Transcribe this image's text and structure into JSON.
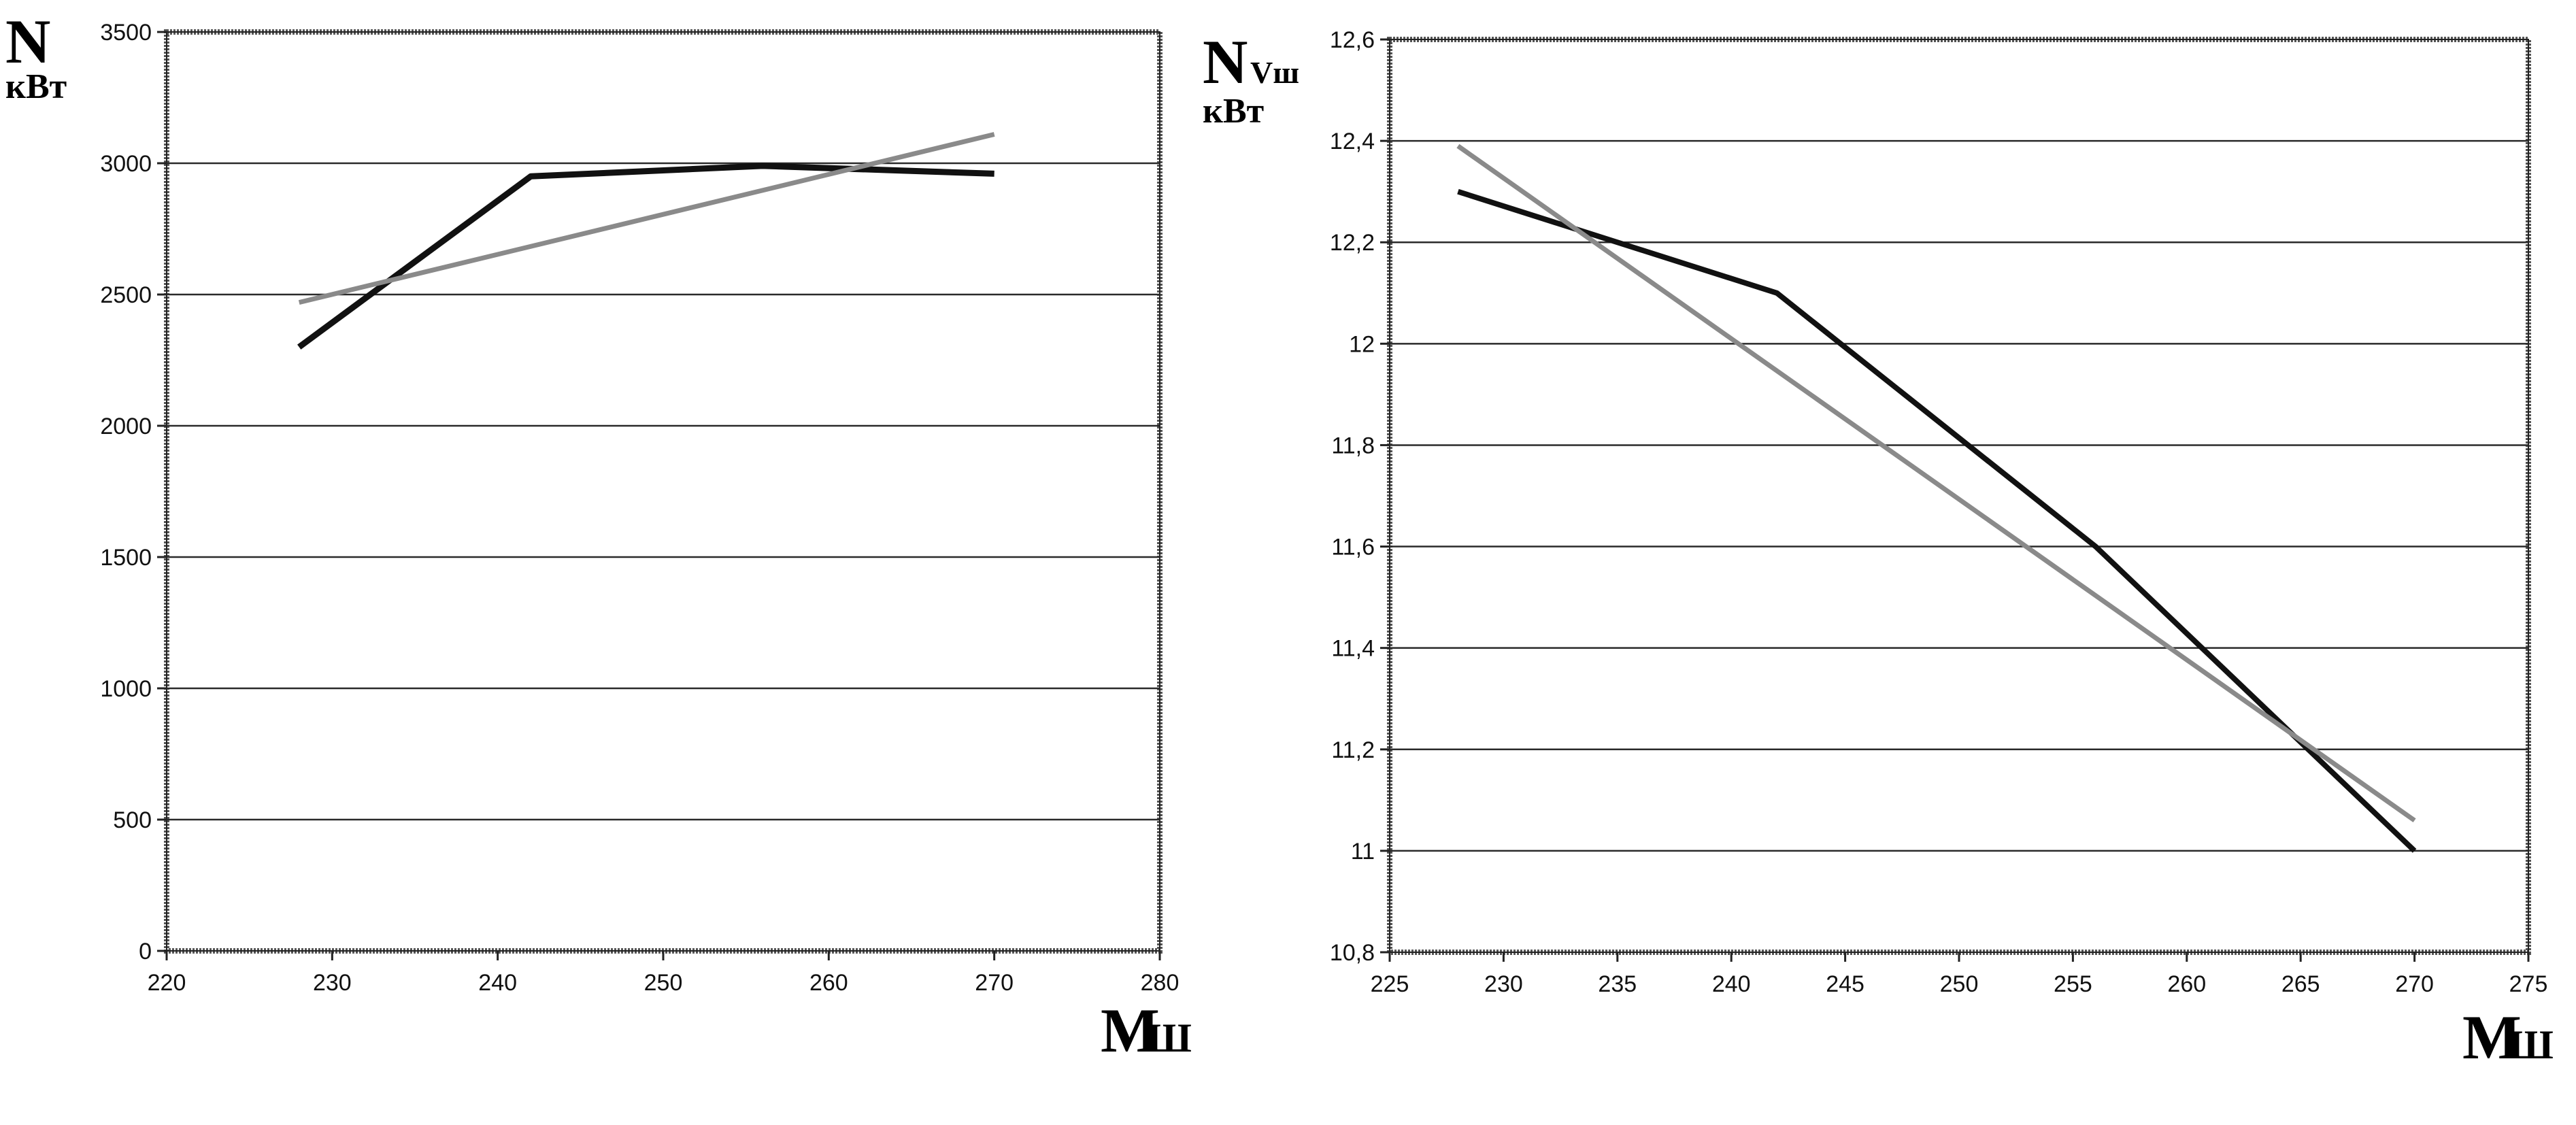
{
  "chart_data": [
    {
      "type": "line",
      "ylabel": {
        "main": "N",
        "unit": "кВт"
      },
      "xlabel": {
        "main": "М",
        "sub": "Ш"
      },
      "xlim": [
        220,
        280
      ],
      "ylim": [
        0,
        3500
      ],
      "xticks": [
        "220",
        "230",
        "240",
        "250",
        "260",
        "270",
        "280"
      ],
      "yticks": [
        "0",
        "500",
        "1000",
        "1500",
        "2000",
        "2500",
        "3000",
        "3500"
      ],
      "grid": true,
      "series": [
        {
          "color": "#111111",
          "width": 9,
          "points": [
            [
              228,
              2300
            ],
            [
              242,
              2950
            ],
            [
              256,
              2990
            ],
            [
              270,
              2960
            ]
          ]
        },
        {
          "color": "#8a8a8a",
          "width": 7,
          "points": [
            [
              228,
              2470
            ],
            [
              270,
              3110
            ]
          ]
        }
      ]
    },
    {
      "type": "line",
      "ylabel": {
        "main": "N",
        "sub": "Vш",
        "unit": "кВт"
      },
      "xlabel": {
        "main": "М",
        "sub": "Ш"
      },
      "xlim": [
        225,
        275
      ],
      "ylim": [
        10.8,
        12.6
      ],
      "xticks": [
        "225",
        "230",
        "235",
        "240",
        "245",
        "250",
        "255",
        "260",
        "265",
        "270",
        "275"
      ],
      "yticks": [
        "10,8",
        "11",
        "11,2",
        "11,4",
        "11,6",
        "11,8",
        "12",
        "12,2",
        "12,4",
        "12,6"
      ],
      "grid": true,
      "series": [
        {
          "color": "#111111",
          "width": 8,
          "points": [
            [
              228,
              12.3
            ],
            [
              242,
              12.1
            ],
            [
              256,
              11.6
            ],
            [
              270,
              11.0
            ]
          ]
        },
        {
          "color": "#8a8a8a",
          "width": 7,
          "points": [
            [
              228,
              12.39
            ],
            [
              270,
              11.06
            ]
          ]
        }
      ]
    }
  ]
}
